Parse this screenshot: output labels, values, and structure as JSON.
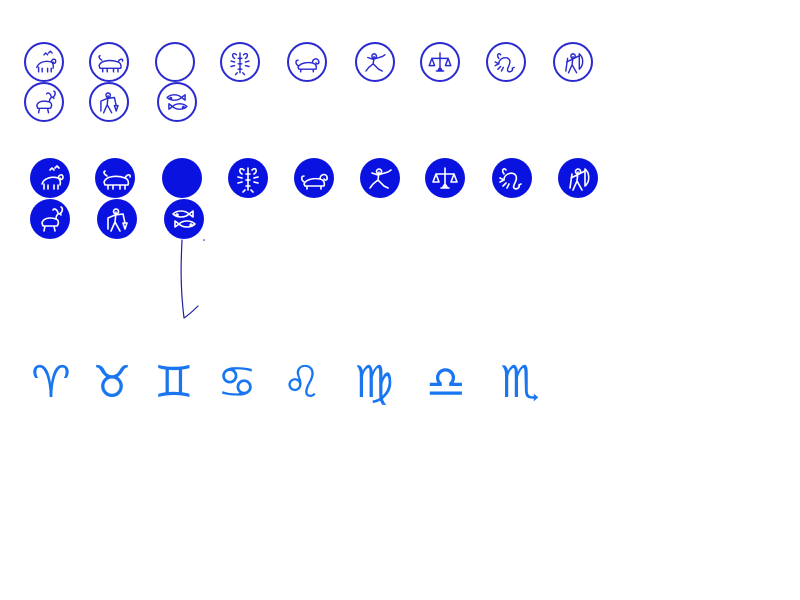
{
  "colors": {
    "outline_stroke": "#2a2ad0",
    "filled_bg": "#0a12e0",
    "glyph_color": "#1976f0",
    "arrow_color": "#2020a0"
  },
  "outline_medallions": [
    {
      "sign": "aries",
      "icon": "ram-icon"
    },
    {
      "sign": "taurus",
      "icon": "bull-icon"
    },
    {
      "sign": "gemini",
      "icon": "twins-icon"
    },
    {
      "sign": "cancer",
      "icon": "crayfish-icon"
    },
    {
      "sign": "leo",
      "icon": "lion-icon"
    },
    {
      "sign": "virgo",
      "icon": "maiden-icon"
    },
    {
      "sign": "libra",
      "icon": "scales-icon"
    },
    {
      "sign": "scorpio",
      "icon": "scorpion-icon"
    },
    {
      "sign": "sagittarius",
      "icon": "archer-icon"
    },
    {
      "sign": "capricorn",
      "icon": "goat-icon"
    },
    {
      "sign": "aquarius",
      "icon": "water-bearer-icon"
    },
    {
      "sign": "pisces",
      "icon": "fish-icon"
    }
  ],
  "filled_medallions": [
    {
      "sign": "aries",
      "icon": "ram-icon"
    },
    {
      "sign": "taurus",
      "icon": "bull-icon"
    },
    {
      "sign": "gemini",
      "icon": "twins-icon"
    },
    {
      "sign": "cancer",
      "icon": "crayfish-icon"
    },
    {
      "sign": "leo",
      "icon": "lion-icon"
    },
    {
      "sign": "virgo",
      "icon": "maiden-icon"
    },
    {
      "sign": "libra",
      "icon": "scales-icon"
    },
    {
      "sign": "scorpio",
      "icon": "scorpion-icon"
    },
    {
      "sign": "sagittarius",
      "icon": "archer-icon"
    },
    {
      "sign": "capricorn",
      "icon": "goat-icon"
    },
    {
      "sign": "aquarius",
      "icon": "water-bearer-icon"
    },
    {
      "sign": "pisces",
      "icon": "fish-icon"
    }
  ],
  "glyphs": [
    {
      "sign": "aries",
      "char": "♈"
    },
    {
      "sign": "taurus",
      "char": "♉"
    },
    {
      "sign": "gemini",
      "char": "♊"
    },
    {
      "sign": "cancer",
      "char": "♋"
    },
    {
      "sign": "leo",
      "char": "♌"
    },
    {
      "sign": "virgo",
      "char": "♍"
    },
    {
      "sign": "libra",
      "char": "♎"
    },
    {
      "sign": "scorpio",
      "char": "♏"
    }
  ]
}
